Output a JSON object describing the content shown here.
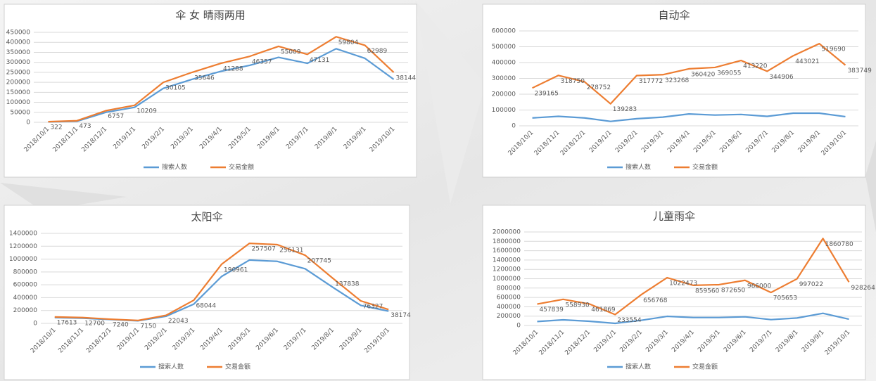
{
  "chart_data": [
    {
      "type": "line",
      "title": "伞 女 晴雨两用",
      "categories": [
        "2018/10/1",
        "2018/11/1",
        "2018/12/1",
        "2019/1/1",
        "2019/2/1",
        "2019/3/1",
        "2019/4/1",
        "2019/5/1",
        "2019/6/1",
        "2019/7/1",
        "2019/8/1",
        "2019/9/1",
        "2019/10/1"
      ],
      "series": [
        {
          "name": "搜索人数",
          "color": "#5b9bd5",
          "values": [
            2000,
            5000,
            50000,
            75000,
            170000,
            215000,
            255000,
            285000,
            325000,
            295000,
            368000,
            320000,
            215000
          ]
        },
        {
          "name": "交易金额",
          "color": "#ed7d31",
          "values": [
            3000,
            8000,
            58000,
            85000,
            200000,
            250000,
            295000,
            330000,
            380000,
            340000,
            428000,
            385000,
            250000
          ]
        }
      ],
      "annotations": [
        "322",
        "473",
        "6757",
        "10209",
        "30105",
        "35646",
        "41288",
        "46357",
        "55009",
        "47131",
        "59804",
        "62989",
        "38144"
      ],
      "ylim": [
        0,
        450000
      ],
      "yticks": [
        0,
        50000,
        100000,
        150000,
        200000,
        250000,
        300000,
        350000,
        400000,
        450000
      ],
      "grid": true,
      "legend": "bottom"
    },
    {
      "type": "line",
      "title": "自动伞",
      "categories": [
        "2018/10/1",
        "2018/11/1",
        "2018/12/1",
        "2019/1/1",
        "2019/2/1",
        "2019/3/1",
        "2019/4/1",
        "2019/5/1",
        "2019/6/1",
        "2019/7/1",
        "2019/8/1",
        "2019/9/1",
        "2019/10/1"
      ],
      "series": [
        {
          "name": "搜索人数",
          "color": "#5b9bd5",
          "values": [
            50000,
            60000,
            50000,
            28000,
            45000,
            55000,
            75000,
            68000,
            72000,
            60000,
            80000,
            80000,
            58000
          ]
        },
        {
          "name": "交易金额",
          "color": "#ed7d31",
          "values": [
            239165,
            318750,
            278752,
            139283,
            317772,
            323268,
            360420,
            369055,
            413220,
            344906,
            443021,
            519690,
            383749
          ],
          "data_labels": true
        }
      ],
      "ylim": [
        0,
        600000
      ],
      "yticks": [
        0,
        100000,
        200000,
        300000,
        400000,
        500000,
        600000
      ],
      "grid": true,
      "legend": "bottom"
    },
    {
      "type": "line",
      "title": "太阳伞",
      "categories": [
        "2018/10/1",
        "2018/11/1",
        "2018/12/1",
        "2019/1/1",
        "2019/2/1",
        "2019/3/1",
        "2019/4/1",
        "2019/5/1",
        "2019/6/1",
        "2019/7/1",
        "2019/8/1",
        "2019/9/1",
        "2019/10/1"
      ],
      "series": [
        {
          "name": "搜索人数",
          "color": "#5b9bd5",
          "values": [
            90000,
            80000,
            60000,
            40000,
            110000,
            300000,
            730000,
            985000,
            965000,
            850000,
            560000,
            280000,
            190000
          ]
        },
        {
          "name": "交易金额",
          "color": "#ed7d31",
          "values": [
            100000,
            90000,
            65000,
            45000,
            125000,
            360000,
            920000,
            1245000,
            1225000,
            1060000,
            700000,
            350000,
            215000
          ]
        }
      ],
      "annotations": [
        "17613",
        "12700",
        "7240",
        "7150",
        "22043",
        "68044",
        "190961",
        "257507",
        "256131",
        "207745",
        "137838",
        "76327",
        "38174"
      ],
      "ylim": [
        0,
        1400000
      ],
      "yticks": [
        0,
        200000,
        400000,
        600000,
        800000,
        1000000,
        1200000,
        1400000
      ],
      "grid": true,
      "legend": "bottom"
    },
    {
      "type": "line",
      "title": "儿童雨伞",
      "categories": [
        "2018/10/1",
        "2018/11/1",
        "2018/12/1",
        "2019/1/1",
        "2019/2/1",
        "2019/3/1",
        "2019/4/1",
        "2019/5/1",
        "2019/6/1",
        "2019/7/1",
        "2019/8/1",
        "2019/9/1",
        "2019/10/1"
      ],
      "series": [
        {
          "name": "搜索人数",
          "color": "#5b9bd5",
          "values": [
            85000,
            120000,
            90000,
            45000,
            110000,
            195000,
            170000,
            170000,
            185000,
            125000,
            160000,
            260000,
            135000
          ]
        },
        {
          "name": "交易金额",
          "color": "#ed7d31",
          "values": [
            457839,
            558930,
            461869,
            233554,
            656768,
            1022473,
            859560,
            872650,
            966000,
            705653,
            997022,
            1860780,
            928264
          ],
          "data_labels": true
        }
      ],
      "ylim": [
        0,
        2000000
      ],
      "yticks": [
        0,
        200000,
        400000,
        600000,
        800000,
        1000000,
        1200000,
        1400000,
        1600000,
        1800000,
        2000000
      ],
      "grid": true,
      "legend": "bottom"
    }
  ]
}
